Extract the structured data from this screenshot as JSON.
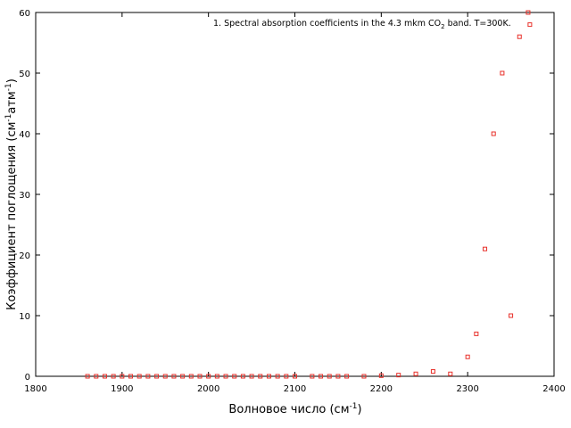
{
  "chart_data": {
    "type": "scatter",
    "annotation": {
      "prefix": "1. Spectral absorption coefficients in the 4.3 mkm CO",
      "subscript": "2",
      "suffix": " band. T=300K."
    },
    "xlabel": {
      "text": "Волновое число (см",
      "sup": "-1",
      "close": ")"
    },
    "ylabel": {
      "text": "Коэффициент поглощения (см",
      "sup1": "-1",
      "mid": "атм",
      "sup2": "-1",
      "close": ")"
    },
    "xlim": [
      1800,
      2400
    ],
    "ylim": [
      0,
      60
    ],
    "xticks": [
      1800,
      1900,
      2000,
      2100,
      2200,
      2300,
      2400
    ],
    "yticks": [
      0,
      10,
      20,
      30,
      40,
      50,
      60
    ],
    "grid": false,
    "marker_color": "#e8302a",
    "x": [
      1860,
      1870,
      1880,
      1890,
      1900,
      1910,
      1920,
      1930,
      1940,
      1950,
      1960,
      1970,
      1980,
      1990,
      2000,
      2010,
      2020,
      2030,
      2040,
      2050,
      2060,
      2070,
      2080,
      2090,
      2100,
      2120,
      2130,
      2140,
      2150,
      2160,
      2180,
      2200,
      2220,
      2240,
      2260,
      2280,
      2300,
      2310,
      2320,
      2330,
      2340,
      2350,
      2360,
      2370,
      2372
    ],
    "y": [
      0,
      0,
      0,
      0,
      0,
      0,
      0,
      0,
      0,
      0,
      0,
      0,
      0,
      0,
      0,
      0,
      0,
      0,
      0,
      0,
      0,
      0,
      0,
      0,
      0,
      0,
      0,
      0,
      0,
      0,
      0,
      0.1,
      0.2,
      0.4,
      0.8,
      0.4,
      3.2,
      7,
      21,
      40,
      50,
      10,
      56,
      60,
      58
    ]
  }
}
